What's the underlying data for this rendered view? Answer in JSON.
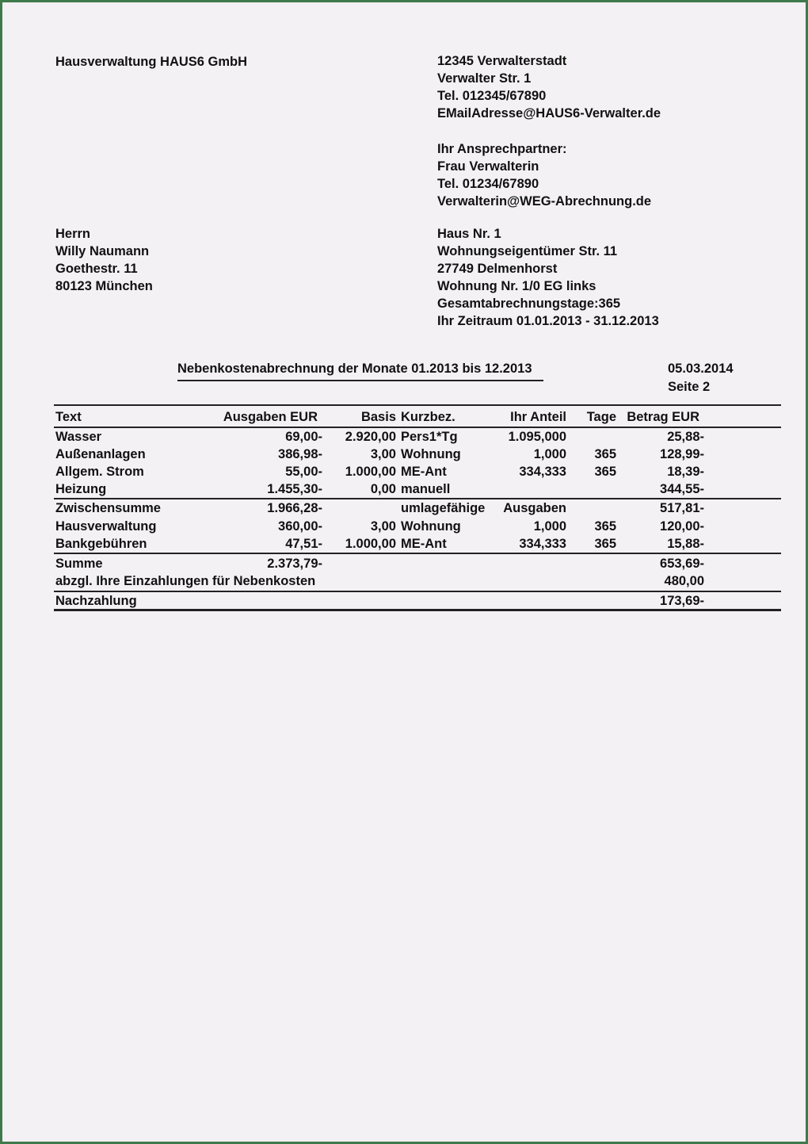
{
  "sender": {
    "name": "Hausverwaltung HAUS6 GmbH"
  },
  "sender_address": [
    "12345 Verwalterstadt",
    "Verwalter Str. 1",
    "Tel. 012345/67890",
    "EMailAdresse@HAUS6-Verwalter.de"
  ],
  "contact": [
    "Ihr Ansprechpartner:",
    "Frau Verwalterin",
    "Tel. 01234/67890",
    "Verwalterin@WEG-Abrechnung.de"
  ],
  "recipient": [
    "Herrn",
    "Willy Naumann",
    "Goethestr. 11",
    "80123 München"
  ],
  "property": [
    "Haus Nr. 1",
    "Wohnungseigentümer Str. 11",
    "27749 Delmenhorst",
    "Wohnung Nr. 1/0 EG links",
    "Gesamtabrechnungstage:365",
    "Ihr Zeitraum 01.01.2013 - 31.12.2013"
  ],
  "title": "Nebenkostenabrechnung der Monate 01.2013 bis 12.2013",
  "date": "05.03.2014",
  "page": "Seite 2",
  "table": {
    "headers": [
      "Text",
      "Ausgaben EUR",
      "Basis",
      "Kurzbez.",
      "Ihr Anteil",
      "Tage",
      "Betrag EUR"
    ],
    "rows": [
      [
        "Wasser",
        "69,00-",
        "2.920,00",
        "Pers1*Tg",
        "1.095,000",
        "",
        "25,88-"
      ],
      [
        "Außenanlagen",
        "386,98-",
        "3,00",
        "Wohnung",
        "1,000",
        "365",
        "128,99-"
      ],
      [
        "Allgem. Strom",
        "55,00-",
        "1.000,00",
        "ME-Ant",
        "334,333",
        "365",
        "18,39-"
      ],
      [
        "Heizung",
        "1.455,30-",
        "0,00",
        "manuell",
        "",
        "",
        "344,55-"
      ],
      [
        "Zwischensumme",
        "1.966,28-",
        "",
        "umlagefähige",
        "Ausgaben",
        "",
        "517,81-"
      ],
      [
        "Hausverwaltung",
        "360,00-",
        "3,00",
        "Wohnung",
        "1,000",
        "365",
        "120,00-"
      ],
      [
        "Bankgebühren",
        "47,51-",
        "1.000,00",
        "ME-Ant",
        "334,333",
        "365",
        "15,88-"
      ],
      [
        "Summe",
        "2.373,79-",
        "",
        "",
        "",
        "",
        "653,69-"
      ],
      [
        "abzgl. Ihre Einzahlungen für Nebenkosten",
        "",
        "",
        "",
        "",
        "",
        "480,00"
      ],
      [
        "Nachzahlung",
        "",
        "",
        "",
        "",
        "",
        "173,69-"
      ]
    ]
  }
}
